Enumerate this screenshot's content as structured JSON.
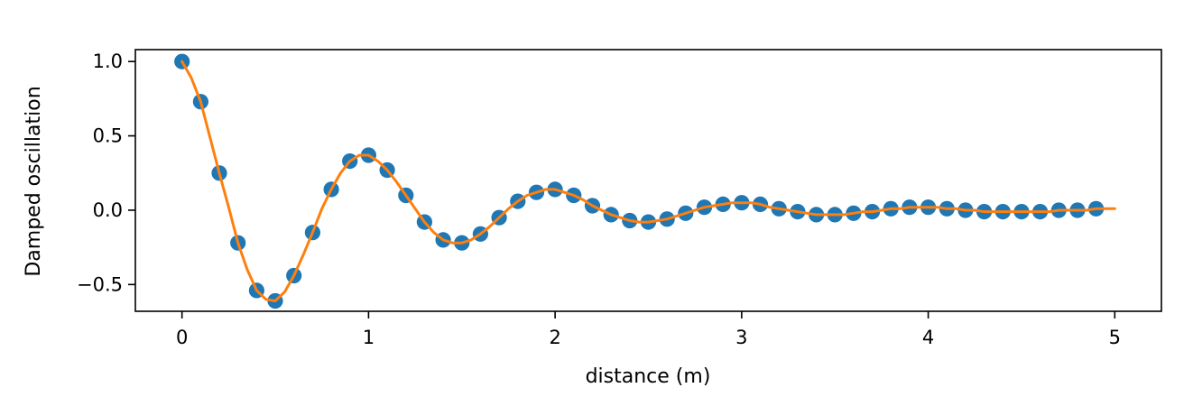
{
  "chart_data": {
    "type": "scatter",
    "title": "",
    "xlabel": "distance (m)",
    "ylabel": "Damped oscillation",
    "xlim": [
      -0.25,
      5.25
    ],
    "ylim": [
      -0.68,
      1.08
    ],
    "x_ticks": [
      0,
      1,
      2,
      3,
      4,
      5
    ],
    "y_ticks": [
      -0.5,
      0.0,
      0.5,
      1.0
    ],
    "x_tick_labels": [
      "0",
      "1",
      "2",
      "3",
      "4",
      "5"
    ],
    "y_tick_labels": [
      "−0.5",
      "0.0",
      "0.5",
      "1.0"
    ],
    "grid": false,
    "series": [
      {
        "kind": "scatter",
        "color": "#1f77b4",
        "x": [
          0.0,
          0.1,
          0.2,
          0.3,
          0.4,
          0.5,
          0.6,
          0.7,
          0.8,
          0.9,
          1.0,
          1.1,
          1.2,
          1.3,
          1.4,
          1.5,
          1.6,
          1.7,
          1.8,
          1.9,
          2.0,
          2.1,
          2.2,
          2.3,
          2.4,
          2.5,
          2.6,
          2.7,
          2.8,
          2.9,
          3.0,
          3.1,
          3.2,
          3.3,
          3.4,
          3.5,
          3.6,
          3.7,
          3.8,
          3.9,
          4.0,
          4.1,
          4.2,
          4.3,
          4.4,
          4.5,
          4.6,
          4.7,
          4.8,
          4.9
        ],
        "y": [
          1.0,
          0.73,
          0.25,
          -0.22,
          -0.54,
          -0.61,
          -0.44,
          -0.15,
          0.14,
          0.33,
          0.37,
          0.27,
          0.1,
          -0.08,
          -0.2,
          -0.22,
          -0.16,
          -0.05,
          0.06,
          0.12,
          0.14,
          0.1,
          0.03,
          -0.03,
          -0.07,
          -0.08,
          -0.06,
          -0.02,
          0.02,
          0.04,
          0.05,
          0.04,
          0.01,
          -0.01,
          -0.03,
          -0.03,
          -0.02,
          -0.01,
          0.01,
          0.02,
          0.02,
          0.01,
          0.0,
          -0.01,
          -0.01,
          -0.01,
          -0.01,
          0.0,
          0.0,
          0.01
        ]
      },
      {
        "kind": "line",
        "color": "#ff7f0e",
        "x": [
          0.0,
          0.05,
          0.1,
          0.15,
          0.2,
          0.25,
          0.3,
          0.35,
          0.4,
          0.45,
          0.5,
          0.55,
          0.6,
          0.65,
          0.7,
          0.75,
          0.8,
          0.85,
          0.9,
          0.95,
          1.0,
          1.05,
          1.1,
          1.15,
          1.2,
          1.25,
          1.3,
          1.35,
          1.4,
          1.45,
          1.5,
          1.55,
          1.6,
          1.65,
          1.7,
          1.75,
          1.8,
          1.85,
          1.9,
          1.95,
          2.0,
          2.05,
          2.1,
          2.15,
          2.2,
          2.25,
          2.3,
          2.35,
          2.4,
          2.45,
          2.5,
          2.55,
          2.6,
          2.65,
          2.7,
          2.75,
          2.8,
          2.85,
          2.9,
          2.95,
          3.0,
          3.05,
          3.1,
          3.15,
          3.2,
          3.25,
          3.3,
          3.35,
          3.4,
          3.45,
          3.5,
          3.55,
          3.6,
          3.65,
          3.7,
          3.75,
          3.8,
          3.85,
          3.9,
          3.95,
          4.0,
          4.05,
          4.1,
          4.15,
          4.2,
          4.25,
          4.3,
          4.35,
          4.4,
          4.45,
          4.5,
          4.55,
          4.6,
          4.65,
          4.7,
          4.75,
          4.8,
          4.85,
          4.9,
          4.95,
          5.0
        ],
        "y": [
          1.0,
          0.89,
          0.73,
          0.49,
          0.25,
          0.02,
          -0.22,
          -0.4,
          -0.54,
          -0.6,
          -0.61,
          -0.55,
          -0.44,
          -0.3,
          -0.15,
          0.01,
          0.14,
          0.25,
          0.33,
          0.37,
          0.37,
          0.33,
          0.27,
          0.19,
          0.1,
          0.01,
          -0.08,
          -0.15,
          -0.2,
          -0.22,
          -0.22,
          -0.2,
          -0.16,
          -0.11,
          -0.05,
          0.01,
          0.06,
          0.1,
          0.12,
          0.14,
          0.14,
          0.12,
          0.1,
          0.07,
          0.03,
          0.0,
          -0.03,
          -0.05,
          -0.07,
          -0.08,
          -0.08,
          -0.07,
          -0.06,
          -0.04,
          -0.02,
          0.0,
          0.02,
          0.03,
          0.04,
          0.05,
          0.05,
          0.05,
          0.04,
          0.02,
          0.01,
          0.0,
          -0.01,
          -0.02,
          -0.03,
          -0.03,
          -0.03,
          -0.03,
          -0.02,
          -0.01,
          -0.01,
          0.0,
          0.01,
          0.01,
          0.02,
          0.02,
          0.02,
          0.02,
          0.01,
          0.01,
          0.0,
          0.0,
          -0.01,
          -0.01,
          -0.01,
          -0.01,
          -0.01,
          -0.01,
          -0.01,
          -0.01,
          0.0,
          0.0,
          0.0,
          0.0,
          0.01,
          0.01,
          0.01
        ]
      }
    ]
  }
}
